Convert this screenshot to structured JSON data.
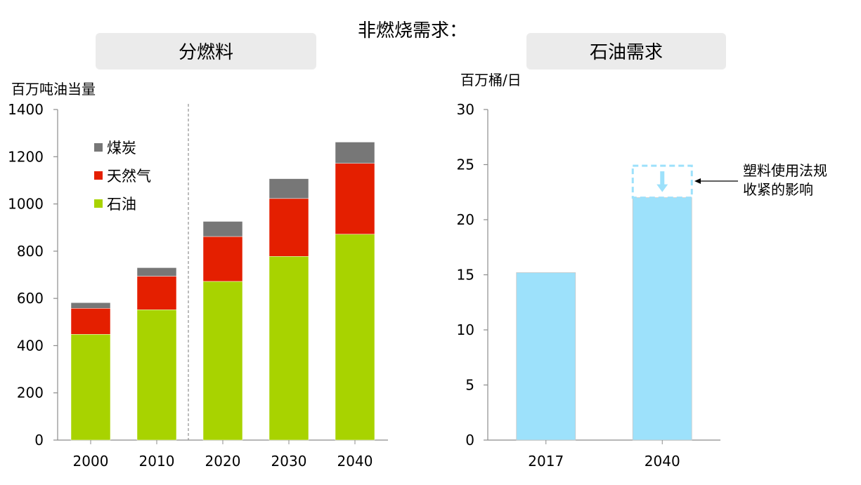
{
  "main_title": "非燃烧需求：",
  "colors": {
    "coal": "#777777",
    "gas": "#e41f00",
    "oil": "#a8d300",
    "plastic": "#9de1fb",
    "panel_bg": "#ebebeb"
  },
  "chart_data": [
    {
      "type": "bar",
      "stacked": true,
      "panel_title": "分燃料",
      "ylabel": "百万吨油当量",
      "categories": [
        "2000",
        "2010",
        "2020",
        "2030",
        "2040"
      ],
      "ylim": [
        0,
        1400
      ],
      "yticks": [
        "0",
        "200",
        "400",
        "600",
        "800",
        "1000",
        "1200",
        "1400"
      ],
      "series": [
        {
          "name": "石油",
          "color_key": "oil",
          "values": [
            448,
            552,
            672,
            778,
            872
          ]
        },
        {
          "name": "天然气",
          "color_key": "gas",
          "values": [
            110,
            142,
            190,
            245,
            300
          ]
        },
        {
          "name": "煤炭",
          "color_key": "coal",
          "values": [
            24,
            36,
            64,
            84,
            90
          ]
        }
      ],
      "legend": [
        "煤炭",
        "天然气",
        "石油"
      ],
      "legend_position": "top-left",
      "divider_after_category": "2010"
    },
    {
      "type": "bar",
      "panel_title": "石油需求",
      "ylabel": "百万桶/日",
      "categories": [
        "2017",
        "2040"
      ],
      "ylim": [
        0,
        30
      ],
      "yticks": [
        "0",
        "5",
        "10",
        "15",
        "20",
        "25",
        "30"
      ],
      "values": [
        15.2,
        22.0
      ],
      "dashed_top_value": 24.9,
      "annotation": [
        "塑料使用法规",
        "收紧的影响"
      ]
    }
  ]
}
